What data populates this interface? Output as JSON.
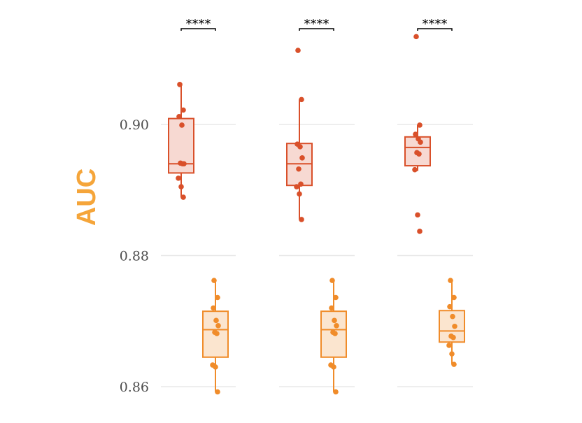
{
  "chart_data": {
    "type": "box",
    "title": "",
    "xlabel": "",
    "ylabel": "AUC",
    "ylim": [
      0.8575,
      0.9165
    ],
    "yticks": [
      0.86,
      0.88,
      0.9
    ],
    "ytick_labels": [
      "0.86",
      "0.88",
      "0.90"
    ],
    "grid": true,
    "legend": "none",
    "colors": {
      "series_a_stroke": "#d9502a",
      "series_a_fill": "#f7d9d2",
      "series_b_stroke": "#f08c2a",
      "series_b_fill": "#fbe5cf",
      "ylabel": "#f5a53a",
      "grid": "#e8e8e8"
    },
    "groups": [
      {
        "significance": "****",
        "boxes": [
          {
            "series": "a",
            "min": 0.8889,
            "q1": 0.8926,
            "median": 0.894,
            "q3": 0.9009,
            "max": 0.9061,
            "points": [
              0.9061,
              0.9022,
              0.9012,
              0.8999,
              0.894,
              0.8941,
              0.894,
              0.8918,
              0.8905,
              0.8889
            ]
          },
          {
            "series": "b",
            "min": 0.8592,
            "q1": 0.8645,
            "median": 0.8687,
            "q3": 0.8715,
            "max": 0.8762,
            "points": [
              0.8762,
              0.8736,
              0.872,
              0.8701,
              0.8693,
              0.8683,
              0.8681,
              0.8633,
              0.863,
              0.8592
            ]
          }
        ]
      },
      {
        "significance": "****",
        "boxes": [
          {
            "series": "a",
            "min": 0.8855,
            "q1": 0.8907,
            "median": 0.894,
            "q3": 0.8971,
            "max": 0.9038,
            "points": [
              0.9113,
              0.9038,
              0.897,
              0.8966,
              0.8949,
              0.8932,
              0.8909,
              0.8905,
              0.8894,
              0.8855
            ]
          },
          {
            "series": "b",
            "min": 0.8592,
            "q1": 0.8645,
            "median": 0.8687,
            "q3": 0.8715,
            "max": 0.8762,
            "points": [
              0.8762,
              0.8736,
              0.872,
              0.8701,
              0.8693,
              0.8683,
              0.8681,
              0.8633,
              0.863,
              0.8592
            ]
          }
        ]
      },
      {
        "significance": "****",
        "boxes": [
          {
            "series": "a",
            "min": 0.8929,
            "q1": 0.8937,
            "median": 0.8965,
            "q3": 0.8981,
            "max": 0.8999,
            "points": [
              0.9134,
              0.8999,
              0.8985,
              0.8978,
              0.8973,
              0.8957,
              0.8955,
              0.8931,
              0.8862,
              0.8837
            ]
          },
          {
            "series": "b",
            "min": 0.8634,
            "q1": 0.8668,
            "median": 0.8685,
            "q3": 0.8716,
            "max": 0.8762,
            "points": [
              0.8762,
              0.8736,
              0.8722,
              0.8707,
              0.8692,
              0.8677,
              0.8675,
              0.8663,
              0.865,
              0.8634
            ]
          }
        ]
      }
    ]
  }
}
